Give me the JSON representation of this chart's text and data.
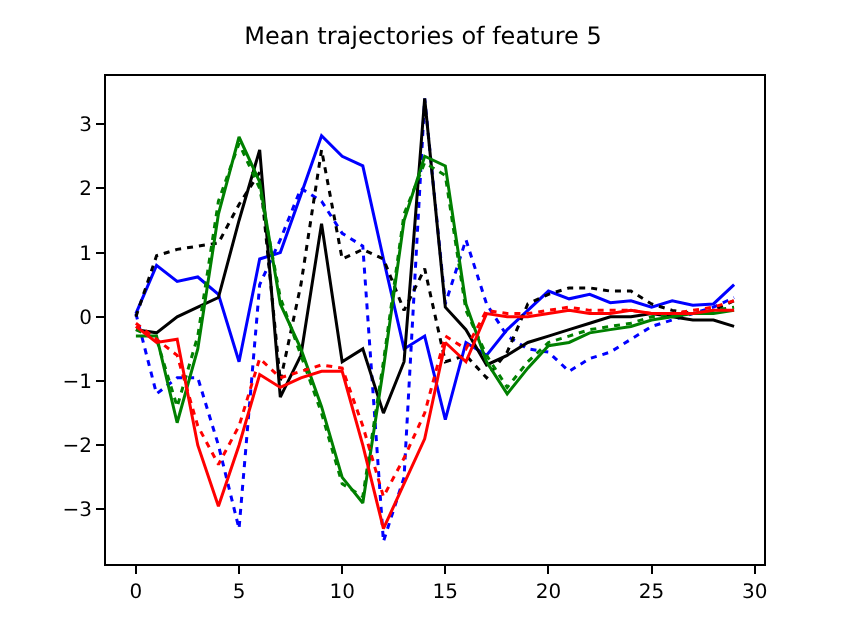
{
  "chart_data": {
    "type": "line",
    "title": "Mean trajectories of feature 5",
    "x": [
      0,
      1,
      2,
      3,
      4,
      5,
      6,
      7,
      8,
      9,
      10,
      11,
      12,
      13,
      14,
      15,
      16,
      17,
      18,
      19,
      20,
      21,
      22,
      23,
      24,
      25,
      26,
      27,
      28,
      29
    ],
    "xlim": [
      -1.45,
      30.45
    ],
    "xticks": [
      0,
      5,
      10,
      15,
      20,
      25,
      30
    ],
    "ylim": [
      -3.85,
      3.75
    ],
    "yticks": [
      {
        "value": -3,
        "label": "−3"
      },
      {
        "value": -2,
        "label": "−2"
      },
      {
        "value": -1,
        "label": "−1"
      },
      0,
      1,
      2,
      3
    ],
    "grid": false,
    "legend": false,
    "marker": "none",
    "series": [
      {
        "color": "#0000ff",
        "line_style": "solid",
        "values": [
          0.05,
          0.8,
          0.55,
          0.62,
          0.35,
          -0.7,
          0.9,
          1.0,
          1.9,
          2.82,
          2.5,
          2.35,
          0.9,
          -0.5,
          -0.3,
          -1.6,
          -0.4,
          -0.6,
          -0.2,
          0.1,
          0.4,
          0.28,
          0.35,
          0.22,
          0.25,
          0.15,
          0.25,
          0.18,
          0.2,
          0.5
        ]
      },
      {
        "color": "#0000ff",
        "line_style": "dotted",
        "values": [
          0.05,
          -1.2,
          -0.95,
          -0.95,
          -2.0,
          -3.3,
          0.5,
          1.2,
          2.0,
          1.8,
          1.3,
          1.1,
          -3.5,
          -2.5,
          3.4,
          0.2,
          1.2,
          0.2,
          -0.3,
          -0.5,
          -0.55,
          -0.85,
          -0.65,
          -0.55,
          -0.35,
          -0.15,
          -0.05,
          0.05,
          0.15,
          0.3
        ]
      },
      {
        "color": "#000000",
        "line_style": "solid",
        "values": [
          -0.2,
          -0.25,
          0.0,
          0.15,
          0.3,
          1.5,
          2.6,
          -1.25,
          -0.6,
          1.45,
          -0.7,
          -0.5,
          -1.5,
          -0.7,
          3.4,
          0.15,
          -0.2,
          -0.75,
          -0.6,
          -0.4,
          -0.3,
          -0.2,
          -0.1,
          0.0,
          0.0,
          0.05,
          0.0,
          -0.05,
          -0.05,
          -0.15
        ]
      },
      {
        "color": "#000000",
        "line_style": "dotted",
        "values": [
          0.0,
          0.95,
          1.05,
          1.1,
          1.15,
          1.75,
          2.25,
          -1.0,
          0.5,
          2.6,
          0.9,
          1.05,
          0.9,
          0.1,
          0.75,
          -0.7,
          -0.6,
          -0.95,
          -0.55,
          0.2,
          0.35,
          0.45,
          0.45,
          0.4,
          0.4,
          0.2,
          0.1,
          0.05,
          0.1,
          0.25
        ]
      },
      {
        "color": "#008000",
        "line_style": "solid",
        "values": [
          -0.3,
          -0.3,
          -1.65,
          -0.5,
          1.6,
          2.8,
          2.1,
          0.2,
          -0.5,
          -1.4,
          -2.5,
          -2.9,
          -0.8,
          1.5,
          2.5,
          2.35,
          0.2,
          -0.7,
          -1.2,
          -0.8,
          -0.45,
          -0.4,
          -0.25,
          -0.2,
          -0.15,
          -0.05,
          0.0,
          0.05,
          0.05,
          0.1
        ]
      },
      {
        "color": "#008000",
        "line_style": "dotted",
        "values": [
          -0.2,
          -0.35,
          -1.4,
          -0.3,
          1.8,
          2.7,
          2.0,
          0.3,
          -0.6,
          -1.5,
          -2.6,
          -2.8,
          -0.7,
          1.6,
          2.4,
          2.2,
          0.1,
          -0.6,
          -1.1,
          -0.7,
          -0.4,
          -0.3,
          -0.2,
          -0.15,
          -0.1,
          0.0,
          0.05,
          0.05,
          0.1,
          0.15
        ]
      },
      {
        "color": "#ff0000",
        "line_style": "solid",
        "values": [
          -0.15,
          -0.4,
          -0.35,
          -2.0,
          -2.95,
          -2.0,
          -0.9,
          -1.1,
          -0.95,
          -0.85,
          -0.85,
          -2.0,
          -3.3,
          -2.6,
          -1.9,
          -0.4,
          -0.7,
          0.05,
          0.0,
          0.0,
          0.05,
          0.1,
          0.05,
          0.05,
          0.1,
          0.05,
          0.05,
          0.05,
          0.1,
          0.1
        ]
      },
      {
        "color": "#ff0000",
        "line_style": "dotted",
        "values": [
          -0.1,
          -0.35,
          -0.6,
          -1.7,
          -2.3,
          -1.7,
          -0.65,
          -0.95,
          -0.85,
          -0.75,
          -0.8,
          -1.7,
          -2.8,
          -2.2,
          -1.5,
          -0.3,
          -0.5,
          0.1,
          0.05,
          0.05,
          0.1,
          0.15,
          0.1,
          0.1,
          0.1,
          0.05,
          0.05,
          0.1,
          0.15,
          0.25
        ]
      }
    ]
  }
}
